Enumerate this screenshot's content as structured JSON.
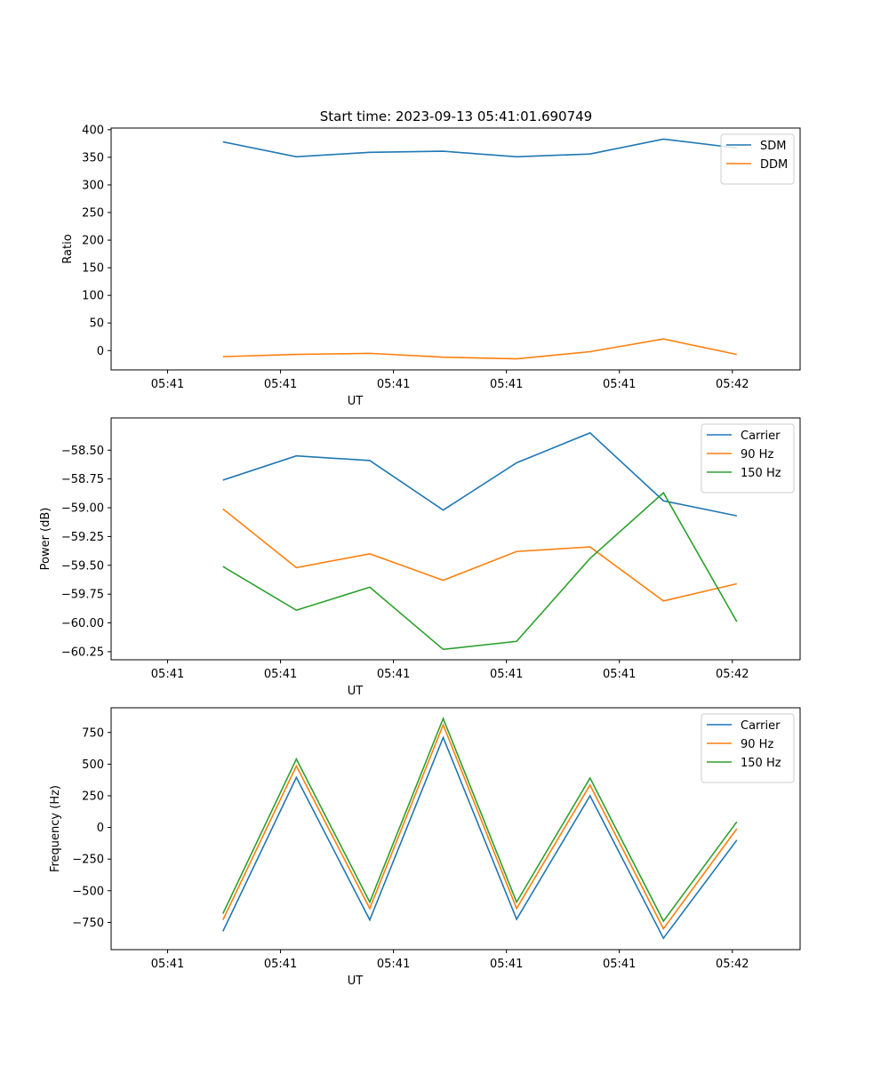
{
  "figure_title": "Start time: 2023-09-13 05:41:01.690749",
  "colors": {
    "blue": "#1f77b4",
    "orange": "#ff7f0e",
    "green": "#2ca02c"
  },
  "chart_data": [
    {
      "type": "line",
      "title": "Start time: 2023-09-13 05:41:01.690749",
      "xlabel": "UT",
      "ylabel": "Ratio",
      "xlim": [
        -0.5,
        5.6
      ],
      "x_ticks": [
        0,
        1,
        2,
        3,
        4,
        5
      ],
      "x_tick_labels": [
        "05:41",
        "05:41",
        "05:41",
        "05:41",
        "05:41",
        "05:42"
      ],
      "ylim": [
        -35,
        403
      ],
      "y_ticks": [
        0,
        50,
        100,
        150,
        200,
        250,
        300,
        350,
        400
      ],
      "y_tick_labels": [
        "0",
        "50",
        "100",
        "150",
        "200",
        "250",
        "300",
        "350",
        "400"
      ],
      "legend_position": "top-right",
      "x": [
        0.49,
        1.14,
        1.79,
        2.44,
        3.09,
        3.74,
        4.39,
        5.04
      ],
      "series": [
        {
          "name": "SDM",
          "color": "#1f77b4",
          "values": [
            378,
            351,
            359,
            361,
            351,
            356,
            383,
            367
          ]
        },
        {
          "name": "DDM",
          "color": "#ff7f0e",
          "values": [
            -11,
            -7,
            -5,
            -12,
            -15,
            -2,
            21,
            -7
          ]
        }
      ]
    },
    {
      "type": "line",
      "title": "",
      "xlabel": "UT",
      "ylabel": "Power (dB)",
      "xlim": [
        -0.5,
        5.6
      ],
      "x_ticks": [
        0,
        1,
        2,
        3,
        4,
        5
      ],
      "x_tick_labels": [
        "05:41",
        "05:41",
        "05:41",
        "05:41",
        "05:41",
        "05:42"
      ],
      "ylim": [
        -60.32,
        -58.22
      ],
      "y_ticks": [
        -58.5,
        -58.75,
        -59.0,
        -59.25,
        -59.5,
        -59.75,
        -60.0,
        -60.25
      ],
      "y_tick_labels": [
        "−58.50",
        "−58.75",
        "−59.00",
        "−59.25",
        "−59.50",
        "−59.75",
        "−60.00",
        "−60.25"
      ],
      "legend_position": "top-right",
      "x": [
        0.49,
        1.14,
        1.79,
        2.44,
        3.09,
        3.74,
        4.39,
        5.04
      ],
      "series": [
        {
          "name": "Carrier",
          "color": "#1f77b4",
          "values": [
            -58.76,
            -58.55,
            -58.59,
            -59.02,
            -58.61,
            -58.35,
            -58.94,
            -59.07
          ]
        },
        {
          "name": "90 Hz",
          "color": "#ff7f0e",
          "values": [
            -59.01,
            -59.52,
            -59.4,
            -59.63,
            -59.38,
            -59.34,
            -59.81,
            -59.66
          ]
        },
        {
          "name": "150 Hz",
          "color": "#2ca02c",
          "values": [
            -59.51,
            -59.89,
            -59.69,
            -60.23,
            -60.16,
            -59.44,
            -58.87,
            -59.99
          ]
        }
      ]
    },
    {
      "type": "line",
      "title": "",
      "xlabel": "UT",
      "ylabel": "Frequency (Hz)",
      "xlim": [
        -0.5,
        5.6
      ],
      "x_ticks": [
        0,
        1,
        2,
        3,
        4,
        5
      ],
      "x_tick_labels": [
        "05:41",
        "05:41",
        "05:41",
        "05:41",
        "05:41",
        "05:42"
      ],
      "ylim": [
        -965,
        945
      ],
      "y_ticks": [
        750,
        500,
        250,
        0,
        -250,
        -500,
        -750
      ],
      "y_tick_labels": [
        "750",
        "500",
        "250",
        "0",
        "−250",
        "−500",
        "−750"
      ],
      "legend_position": "top-right",
      "x": [
        0.49,
        1.14,
        1.79,
        2.44,
        3.09,
        3.74,
        4.39,
        5.04
      ],
      "series": [
        {
          "name": "Carrier",
          "color": "#1f77b4",
          "values": [
            -820,
            395,
            -730,
            710,
            -725,
            250,
            -875,
            -100
          ]
        },
        {
          "name": "90 Hz",
          "color": "#ff7f0e",
          "values": [
            -730,
            485,
            -640,
            810,
            -640,
            335,
            -800,
            -10
          ]
        },
        {
          "name": "150 Hz",
          "color": "#2ca02c",
          "values": [
            -680,
            540,
            -590,
            860,
            -590,
            390,
            -740,
            45
          ]
        }
      ]
    }
  ]
}
